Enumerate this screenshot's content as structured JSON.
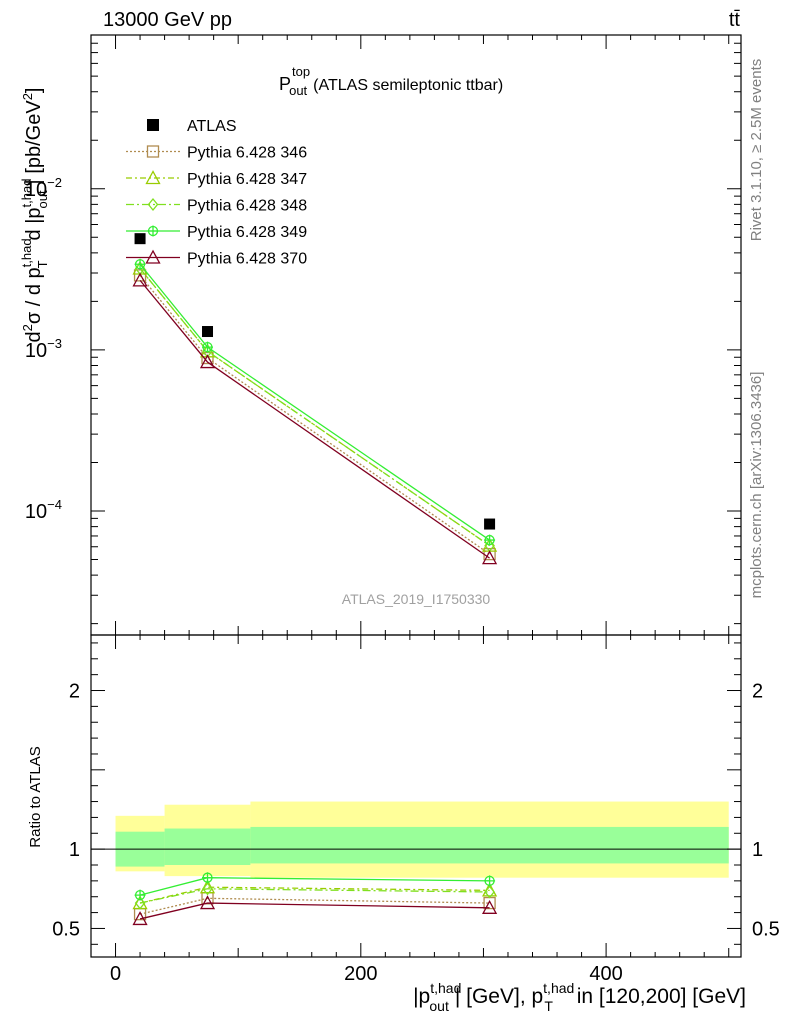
{
  "header": {
    "energy": "13000 GeV pp",
    "process": "tt̄"
  },
  "side_labels": {
    "rivet": "Rivet 3.1.10, ≥ 2.5M events",
    "mcplots": "mcplots.cern.ch [arXiv:1306.3436]"
  },
  "colors": {
    "ATLAS": "#000000",
    "Pythia 6.428 346": "#b08c50",
    "Pythia 6.428 347": "#99cc00",
    "Pythia 6.428 348": "#80e020",
    "Pythia 6.428 349": "#33ee33",
    "Pythia 6.428 370": "#800020",
    "band_inner": "#99ff99",
    "band_outer": "#ffff99"
  },
  "chart_data": [
    {
      "type": "scatter",
      "panel": "main",
      "title_main": "P",
      "title_sup": "top",
      "title_sub": "out",
      "title_rest": "(ATLAS semileptonic ttbar)",
      "ylabel": "d²σ / d p_T^{t,had} d |p_out^{t,had}| [pb/GeV²]",
      "yscale": "log",
      "ylim": [
        1.7e-05,
        0.09
      ],
      "xlim": [
        -20,
        510
      ],
      "watermark": "ATLAS_2019_I1750330",
      "legend_position": "top-left",
      "yticks": [
        {
          "value": 0.01,
          "base": "10",
          "exp": "−2"
        },
        {
          "value": 0.001,
          "base": "10",
          "exp": "−3"
        },
        {
          "value": 0.0001,
          "base": "10",
          "exp": "−4"
        }
      ],
      "data": {
        "name": "ATLAS",
        "x": [
          20,
          75,
          305
        ],
        "y": [
          0.0049,
          0.0013,
          8.3e-05
        ]
      },
      "series": [
        {
          "name": "Pythia 6.428 346",
          "x": [
            20,
            75,
            305
          ],
          "y": [
            0.0029,
            0.00089,
            5.4e-05
          ],
          "marker": "square",
          "dash": "dotted"
        },
        {
          "name": "Pythia 6.428 347",
          "x": [
            20,
            75,
            305
          ],
          "y": [
            0.0032,
            0.00098,
            6.1e-05
          ],
          "marker": "triangle",
          "dash": "dashdot"
        },
        {
          "name": "Pythia 6.428 348",
          "x": [
            20,
            75,
            305
          ],
          "y": [
            0.0032,
            0.00098,
            6.1e-05
          ],
          "marker": "diamond",
          "dash": "dashdot2"
        },
        {
          "name": "Pythia 6.428 349",
          "x": [
            20,
            75,
            305
          ],
          "y": [
            0.0034,
            0.00104,
            6.6e-05
          ],
          "marker": "cross",
          "dash": "solid"
        },
        {
          "name": "Pythia 6.428 370",
          "x": [
            20,
            75,
            305
          ],
          "y": [
            0.0027,
            0.00084,
            5.1e-05
          ],
          "marker": "triangle",
          "dash": "solid"
        }
      ]
    },
    {
      "type": "scatter",
      "panel": "ratio",
      "ylabel": "Ratio to ATLAS",
      "ylim": [
        0.32,
        2.35
      ],
      "xlim": [
        -20,
        510
      ],
      "yticks": [
        {
          "value": 2,
          "label": "2"
        },
        {
          "value": 1,
          "label": "1"
        },
        {
          "value": 0.5,
          "label": "0.5"
        }
      ],
      "xticks": [
        {
          "value": 0,
          "label": "0"
        },
        {
          "value": 200,
          "label": "200"
        },
        {
          "value": 400,
          "label": "400"
        }
      ],
      "xlabel_a": "|p",
      "xlabel_a_sup": "t,had",
      "xlabel_a_sub": "out",
      "xlabel_b": "| [GeV], p",
      "xlabel_b_sup": "t,had",
      "xlabel_b_sub": "T",
      "xlabel_c": " in [120,200] [GeV]",
      "bands": [
        {
          "x": [
            0,
            40
          ],
          "inner": [
            0.89,
            1.11
          ],
          "outer": [
            0.86,
            1.21
          ]
        },
        {
          "x": [
            40,
            110
          ],
          "inner": [
            0.9,
            1.13
          ],
          "outer": [
            0.83,
            1.28
          ]
        },
        {
          "x": [
            110,
            500
          ],
          "inner": [
            0.91,
            1.14
          ],
          "outer": [
            0.82,
            1.3
          ]
        }
      ],
      "series": [
        {
          "name": "Pythia 6.428 346",
          "x": [
            20,
            75,
            305
          ],
          "y": [
            0.59,
            0.69,
            0.66
          ]
        },
        {
          "name": "Pythia 6.428 347",
          "x": [
            20,
            75,
            305
          ],
          "y": [
            0.66,
            0.76,
            0.74
          ]
        },
        {
          "name": "Pythia 6.428 348",
          "x": [
            20,
            75,
            305
          ],
          "y": [
            0.66,
            0.75,
            0.73
          ]
        },
        {
          "name": "Pythia 6.428 349",
          "x": [
            20,
            75,
            305
          ],
          "y": [
            0.71,
            0.82,
            0.8
          ]
        },
        {
          "name": "Pythia 6.428 370",
          "x": [
            20,
            75,
            305
          ],
          "y": [
            0.56,
            0.66,
            0.63
          ]
        }
      ]
    }
  ]
}
